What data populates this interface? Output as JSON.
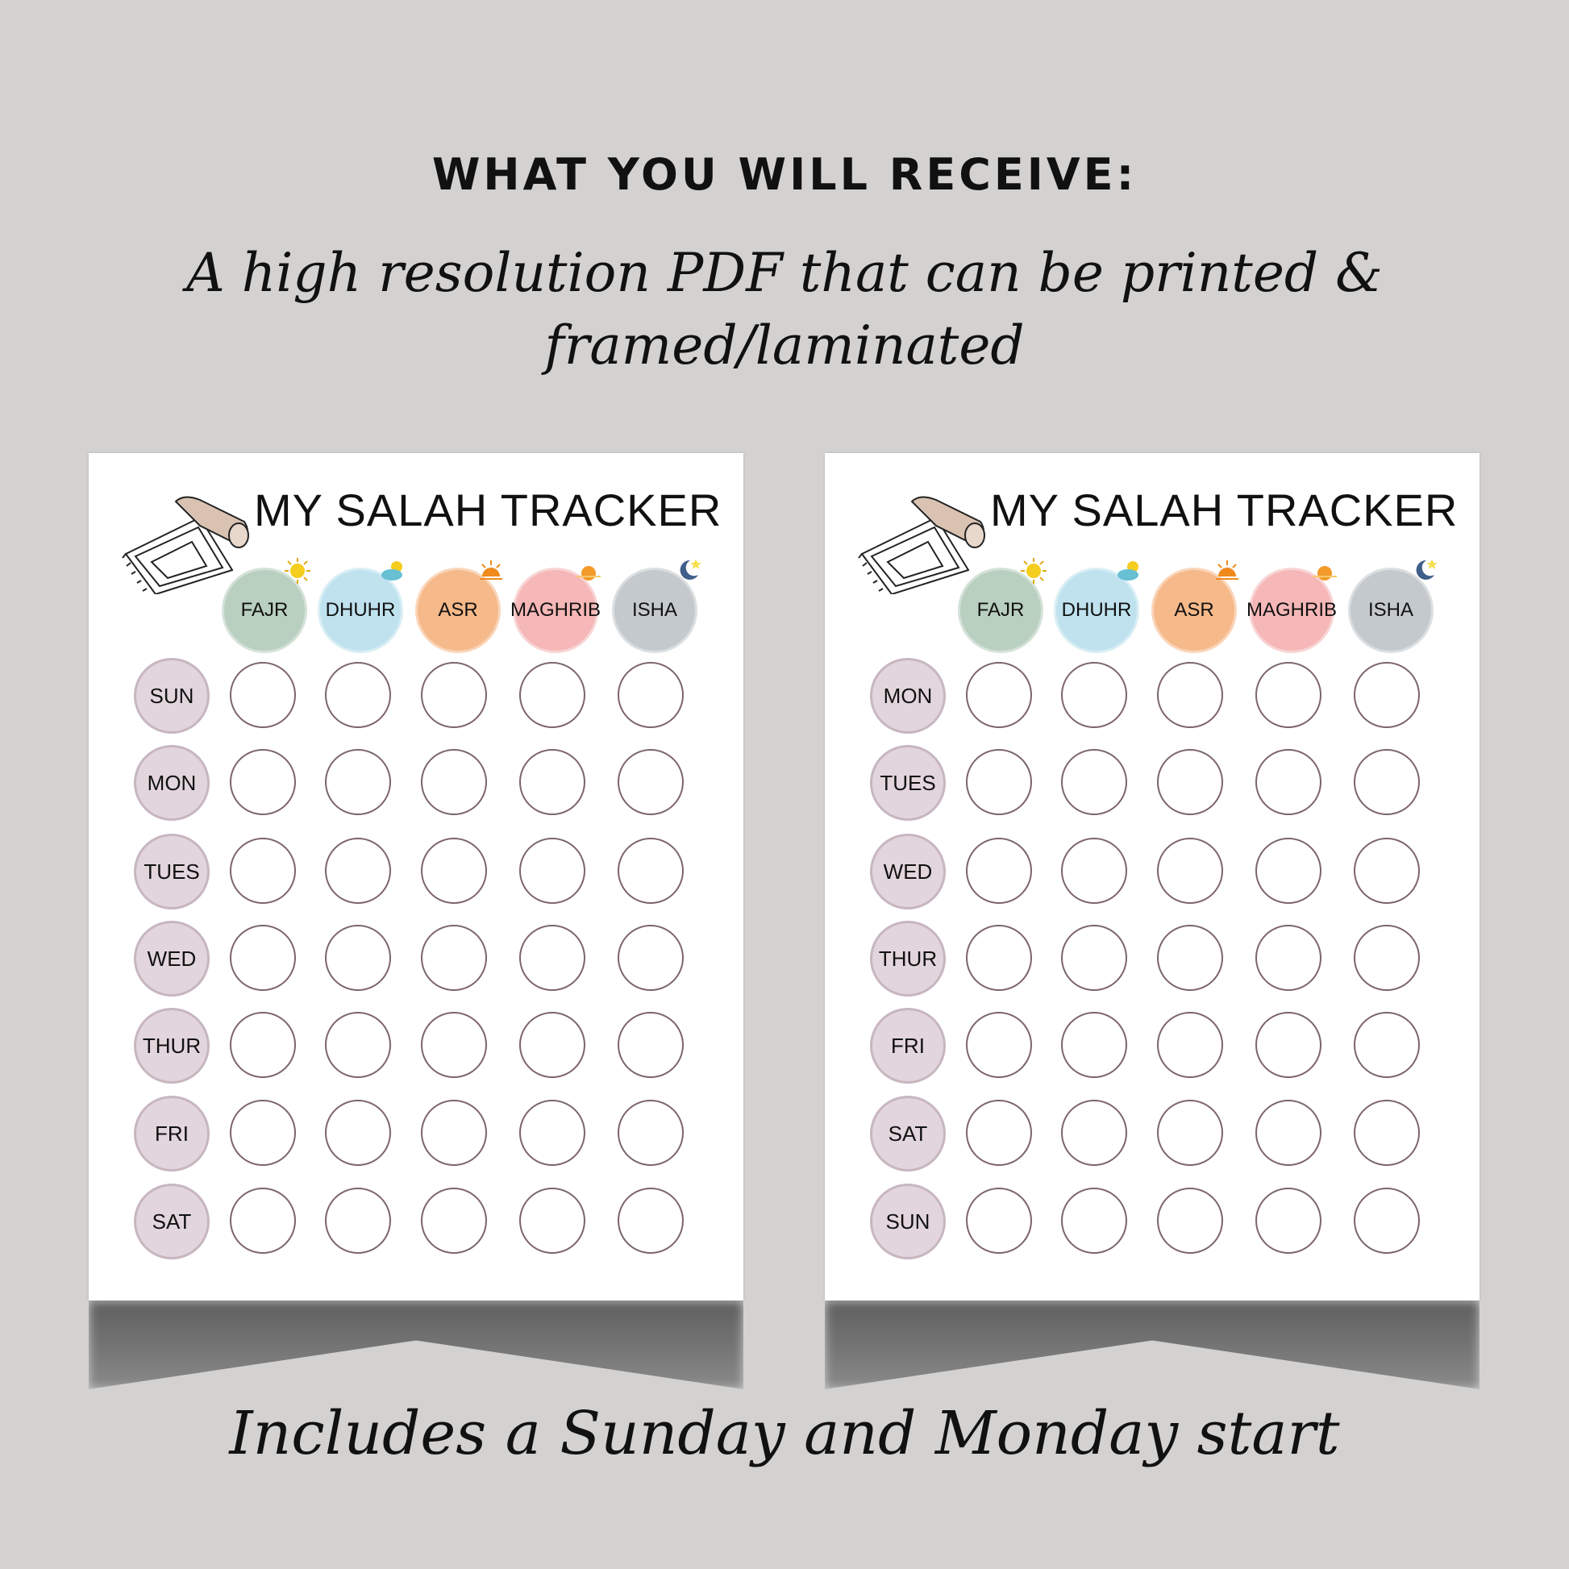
{
  "heading": "WHAT YOU WILL RECEIVE:",
  "description_line1": "A high resolution PDF that can be printed &",
  "description_line2": "framed/laminated",
  "footer": "Includes a Sunday and Monday start",
  "prayers": [
    {
      "label": "FAJR",
      "color": "#b9cfbf",
      "icon": "sun-icon"
    },
    {
      "label": "DHUHR",
      "color": "#bfe2ee",
      "icon": "sun-cloud-icon"
    },
    {
      "label": "ASR",
      "color": "#f6b98a",
      "icon": "sunset-icon"
    },
    {
      "label": "MAGHRIB",
      "color": "#f5b7b7",
      "icon": "setting-sun-icon"
    },
    {
      "label": "ISHA",
      "color": "#c4c9cd",
      "icon": "moon-star-icon"
    }
  ],
  "pages": [
    {
      "title": "MY SALAH TRACKER",
      "days": [
        "SUN",
        "MON",
        "TUES",
        "WED",
        "THUR",
        "FRI",
        "SAT"
      ]
    },
    {
      "title": "MY SALAH TRACKER",
      "days": [
        "MON",
        "TUES",
        "WED",
        "THUR",
        "FRI",
        "SAT",
        "SUN"
      ]
    }
  ]
}
